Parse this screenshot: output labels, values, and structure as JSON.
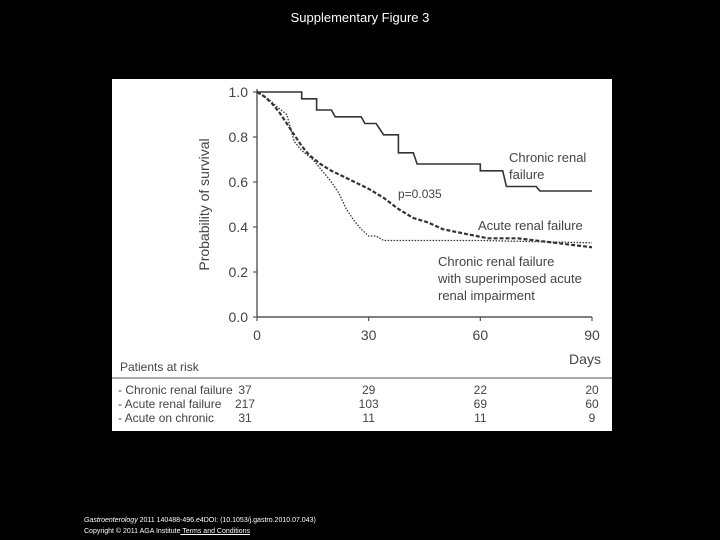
{
  "slide": {
    "title": "Supplementary Figure 3",
    "citation_journal": "Gastroenterology",
    "citation_rest": " 2011 140488-496.e4DOI: (10.1053/j.gastro.2010.07.043)",
    "copyright": "Copyright © 2011 AGA Institute",
    "terms_link": " Terms and Conditions"
  },
  "chart_data": {
    "type": "line",
    "xlabel": "Days",
    "ylabel": "Probability of survival",
    "xlim": [
      0,
      90
    ],
    "ylim": [
      0,
      1.0
    ],
    "x_ticks": [
      0,
      30,
      60,
      90
    ],
    "y_ticks": [
      "0.0",
      "0.2",
      "0.4",
      "0.6",
      "0.8",
      "1.0"
    ],
    "annotation": "p=0.035",
    "series": [
      {
        "name": "Chronic renal failure",
        "label_lines": [
          "Chronic renal",
          "failure"
        ],
        "style": "solid",
        "points": [
          [
            0,
            1.0
          ],
          [
            12,
            1.0
          ],
          [
            12,
            0.97
          ],
          [
            16,
            0.97
          ],
          [
            16,
            0.92
          ],
          [
            20,
            0.92
          ],
          [
            21,
            0.89
          ],
          [
            28,
            0.89
          ],
          [
            29,
            0.86
          ],
          [
            32,
            0.86
          ],
          [
            34,
            0.81
          ],
          [
            38,
            0.81
          ],
          [
            38,
            0.73
          ],
          [
            42,
            0.73
          ],
          [
            43,
            0.68
          ],
          [
            60,
            0.68
          ],
          [
            60,
            0.65
          ],
          [
            66,
            0.65
          ],
          [
            67,
            0.58
          ],
          [
            75,
            0.58
          ],
          [
            76,
            0.56
          ],
          [
            90,
            0.56
          ]
        ]
      },
      {
        "name": "Acute renal failure",
        "label_lines": [
          "Acute renal failure"
        ],
        "style": "dashed",
        "points": [
          [
            0,
            1.0
          ],
          [
            2,
            0.98
          ],
          [
            4,
            0.95
          ],
          [
            6,
            0.91
          ],
          [
            8,
            0.86
          ],
          [
            10,
            0.81
          ],
          [
            12,
            0.76
          ],
          [
            14,
            0.72
          ],
          [
            17,
            0.68
          ],
          [
            20,
            0.65
          ],
          [
            25,
            0.61
          ],
          [
            30,
            0.57
          ],
          [
            34,
            0.53
          ],
          [
            38,
            0.48
          ],
          [
            42,
            0.44
          ],
          [
            46,
            0.42
          ],
          [
            50,
            0.39
          ],
          [
            56,
            0.37
          ],
          [
            62,
            0.35
          ],
          [
            70,
            0.35
          ],
          [
            80,
            0.33
          ],
          [
            90,
            0.31
          ]
        ]
      },
      {
        "name": "Chronic renal failure with superimposed acute renal impairment",
        "label_lines": [
          "Chronic renal failure",
          "with superimposed acute",
          "renal impairment"
        ],
        "style": "dotted",
        "points": [
          [
            0,
            1.0
          ],
          [
            3,
            0.97
          ],
          [
            5,
            0.94
          ],
          [
            8,
            0.9
          ],
          [
            9,
            0.84
          ],
          [
            10,
            0.78
          ],
          [
            12,
            0.74
          ],
          [
            15,
            0.7
          ],
          [
            18,
            0.64
          ],
          [
            20,
            0.6
          ],
          [
            22,
            0.55
          ],
          [
            24,
            0.48
          ],
          [
            26,
            0.43
          ],
          [
            28,
            0.39
          ],
          [
            30,
            0.36
          ],
          [
            32,
            0.36
          ],
          [
            34,
            0.34
          ],
          [
            40,
            0.34
          ],
          [
            60,
            0.34
          ],
          [
            90,
            0.33
          ]
        ]
      }
    ],
    "risk_table": {
      "header": "Patients at risk",
      "rows": [
        {
          "label": "- Chronic renal failure",
          "values": [
            "37",
            "29",
            "22",
            "20"
          ]
        },
        {
          "label": "- Acute renal failure",
          "values": [
            "217",
            "103",
            "69",
            "60"
          ]
        },
        {
          "label": "- Acute on chronic",
          "values": [
            "31",
            "11",
            "11",
            "9"
          ]
        }
      ]
    }
  }
}
